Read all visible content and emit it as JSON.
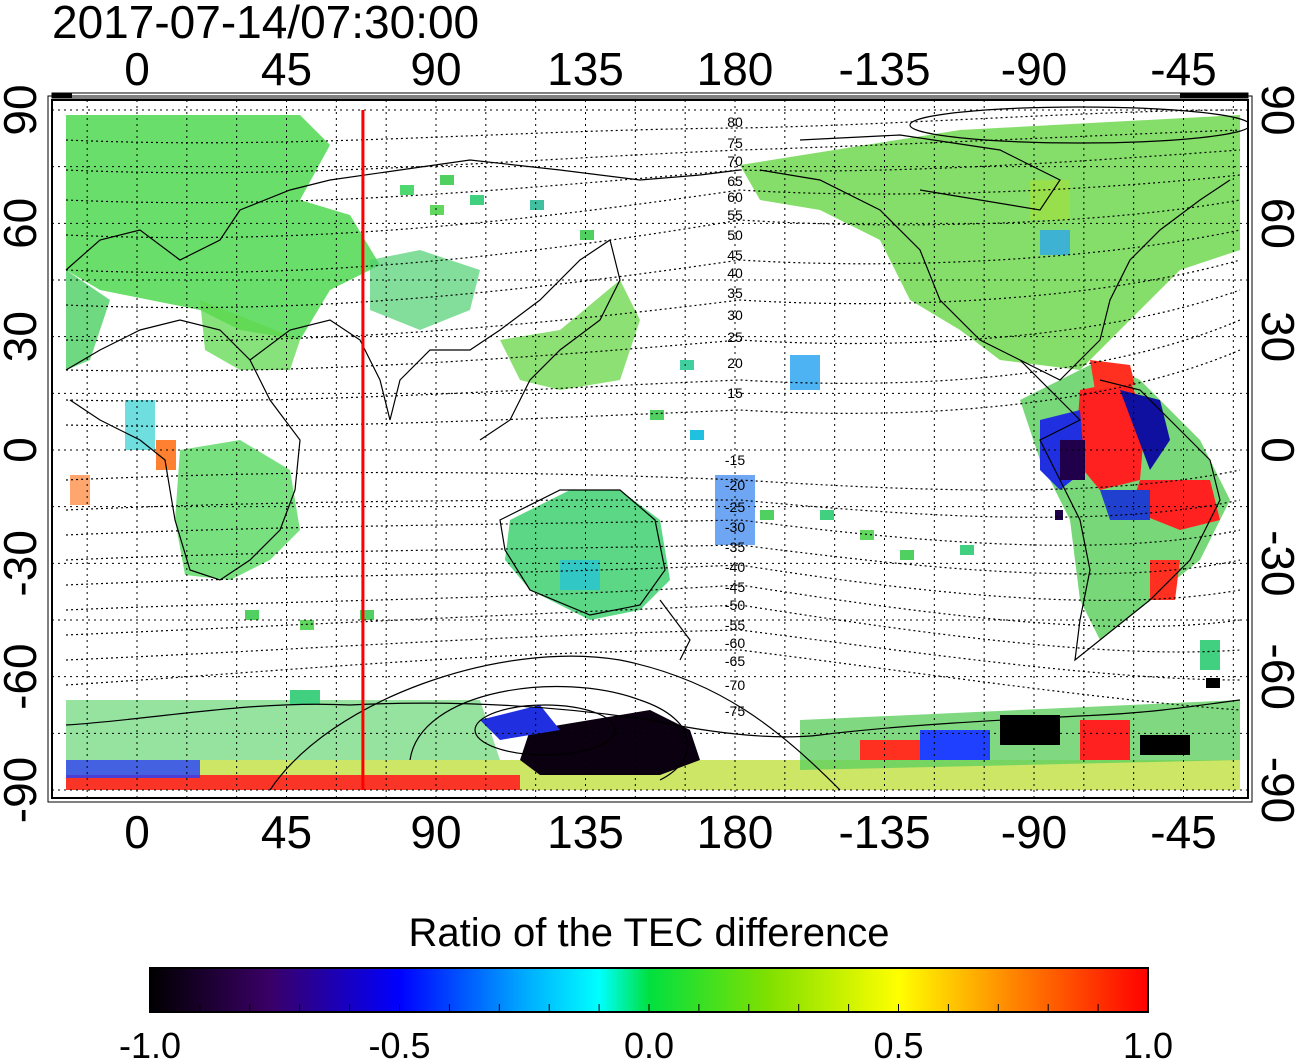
{
  "title": "2017-07-14/07:30:00",
  "map": {
    "lon_ticks": [
      "0",
      "45",
      "90",
      "135",
      "180",
      "-135",
      "-90",
      "-45"
    ],
    "lat_ticks": [
      "90",
      "60",
      "30",
      "0",
      "-30",
      "-60",
      "-90"
    ],
    "marker_longitude": 68,
    "marker_color": "#ff0000",
    "mlat_labels_north": [
      "80",
      "75",
      "70",
      "65",
      "60",
      "55",
      "50",
      "45",
      "40",
      "35",
      "30",
      "25",
      "20",
      "15"
    ],
    "mlat_labels_south": [
      "-15",
      "-20",
      "-25",
      "-30",
      "-35",
      "-40",
      "-45",
      "-50",
      "-55",
      "-60",
      "-65",
      "-70",
      "-75"
    ]
  },
  "colorbar": {
    "title": "Ratio of the TEC difference",
    "ticks": [
      "-1.0",
      "-0.5",
      "0.0",
      "0.5",
      "1.0"
    ],
    "range": [
      -1.0,
      1.0
    ],
    "colors": [
      "#000000",
      "#3a0066",
      "#0000ff",
      "#00ffff",
      "#00e040",
      "#ffff00",
      "#ff0000"
    ]
  }
}
